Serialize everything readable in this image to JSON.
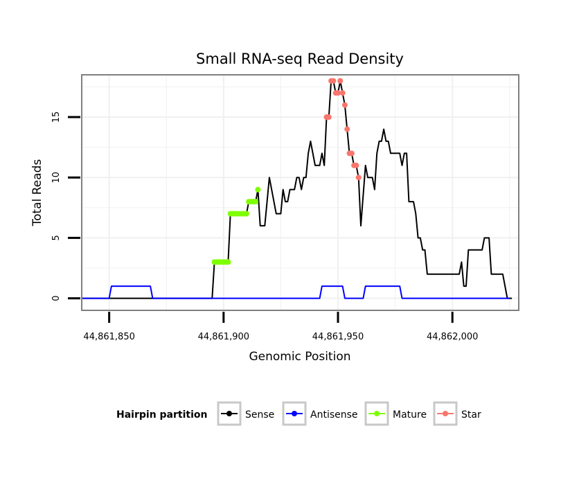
{
  "chart_data": {
    "type": "line",
    "title": "Small RNA-seq Read Density",
    "xlabel": "Genomic Position",
    "ylabel": "Total Reads",
    "xlim": [
      44861838,
      44862029
    ],
    "ylim": [
      -1,
      18.5
    ],
    "x_ticks": [
      44861850,
      44861900,
      44861950,
      44862000
    ],
    "x_tick_labels": [
      "44,861,850",
      "44,861,900",
      "44,861,950",
      "44,862,000"
    ],
    "y_ticks": [
      0,
      5,
      10,
      15
    ],
    "y_tick_labels": [
      "0",
      "5",
      "10",
      "15"
    ],
    "grid": true,
    "legend": {
      "title": "Hairpin partition",
      "placement": "bottom",
      "entries": [
        "Sense",
        "Antisense",
        "Mature",
        "Star"
      ]
    },
    "series": [
      {
        "name": "Sense",
        "color": "#000000",
        "points": [
          [
            44861838,
            0
          ],
          [
            44861895,
            0
          ],
          [
            44861896,
            3
          ],
          [
            44861902,
            3
          ],
          [
            44861903,
            7
          ],
          [
            44861910,
            7
          ],
          [
            44861911,
            8
          ],
          [
            44861914,
            8
          ],
          [
            44861915,
            9
          ],
          [
            44861916,
            6
          ],
          [
            44861918,
            6
          ],
          [
            44861920,
            10
          ],
          [
            44861923,
            7
          ],
          [
            44861925,
            7
          ],
          [
            44861926,
            9
          ],
          [
            44861927,
            8
          ],
          [
            44861928,
            8
          ],
          [
            44861929,
            9
          ],
          [
            44861931,
            9
          ],
          [
            44861932,
            10
          ],
          [
            44861933,
            10
          ],
          [
            44861934,
            9
          ],
          [
            44861935,
            10
          ],
          [
            44861936,
            10
          ],
          [
            44861937,
            12
          ],
          [
            44861938,
            13
          ],
          [
            44861940,
            11
          ],
          [
            44861942,
            11
          ],
          [
            44861943,
            12
          ],
          [
            44861944,
            11
          ],
          [
            44861945,
            15
          ],
          [
            44861946,
            15
          ],
          [
            44861947,
            18
          ],
          [
            44861948,
            18
          ],
          [
            44861949,
            17
          ],
          [
            44861950,
            17
          ],
          [
            44861951,
            18
          ],
          [
            44861952,
            17
          ],
          [
            44861953,
            16
          ],
          [
            44861954,
            14
          ],
          [
            44861955,
            12
          ],
          [
            44861956,
            12
          ],
          [
            44861957,
            11
          ],
          [
            44861958,
            11
          ],
          [
            44861959,
            10
          ],
          [
            44861960,
            6
          ],
          [
            44861962,
            11
          ],
          [
            44861963,
            10
          ],
          [
            44861965,
            10
          ],
          [
            44861966,
            9
          ],
          [
            44861967,
            12
          ],
          [
            44861968,
            13
          ],
          [
            44861969,
            13
          ],
          [
            44861970,
            14
          ],
          [
            44861971,
            13
          ],
          [
            44861972,
            13
          ],
          [
            44861973,
            12
          ],
          [
            44861977,
            12
          ],
          [
            44861978,
            11
          ],
          [
            44861979,
            12
          ],
          [
            44861980,
            12
          ],
          [
            44861981,
            8
          ],
          [
            44861983,
            8
          ],
          [
            44861984,
            7
          ],
          [
            44861985,
            5
          ],
          [
            44861986,
            5
          ],
          [
            44861987,
            4
          ],
          [
            44861988,
            4
          ],
          [
            44861989,
            2
          ],
          [
            44862003,
            2
          ],
          [
            44862004,
            3
          ],
          [
            44862005,
            1
          ],
          [
            44862006,
            1
          ],
          [
            44862007,
            4
          ],
          [
            44862013,
            4
          ],
          [
            44862014,
            5
          ],
          [
            44862016,
            5
          ],
          [
            44862017,
            2
          ],
          [
            44862022,
            2
          ],
          [
            44862024,
            0
          ],
          [
            44862026,
            0
          ]
        ]
      },
      {
        "name": "Antisense",
        "color": "#0000ff",
        "points": [
          [
            44861838,
            0
          ],
          [
            44861850,
            0
          ],
          [
            44861851,
            1
          ],
          [
            44861868,
            1
          ],
          [
            44861869,
            0
          ],
          [
            44861942,
            0
          ],
          [
            44861943,
            1
          ],
          [
            44861952,
            1
          ],
          [
            44861953,
            0
          ],
          [
            44861961,
            0
          ],
          [
            44861962,
            1
          ],
          [
            44861977,
            1
          ],
          [
            44861978,
            0
          ],
          [
            44862025,
            0
          ]
        ]
      },
      {
        "name": "Mature",
        "color": "#7fff00",
        "points": [
          [
            44861896,
            3
          ],
          [
            44861897,
            3
          ],
          [
            44861898,
            3
          ],
          [
            44861899,
            3
          ],
          [
            44861900,
            3
          ],
          [
            44861901,
            3
          ],
          [
            44861902,
            3
          ],
          [
            44861903,
            7
          ],
          [
            44861904,
            7
          ],
          [
            44861905,
            7
          ],
          [
            44861906,
            7
          ],
          [
            44861907,
            7
          ],
          [
            44861908,
            7
          ],
          [
            44861909,
            7
          ],
          [
            44861910,
            7
          ],
          [
            44861911,
            8
          ],
          [
            44861912,
            8
          ],
          [
            44861913,
            8
          ],
          [
            44861914,
            8
          ],
          [
            44861915,
            9
          ]
        ]
      },
      {
        "name": "Star",
        "color": "#f8766d",
        "points": [
          [
            44861945,
            15
          ],
          [
            44861946,
            15
          ],
          [
            44861947,
            18
          ],
          [
            44861948,
            18
          ],
          [
            44861949,
            17
          ],
          [
            44861950,
            17
          ],
          [
            44861951,
            18
          ],
          [
            44861952,
            17
          ],
          [
            44861953,
            16
          ],
          [
            44861954,
            14
          ],
          [
            44861955,
            12
          ],
          [
            44861956,
            12
          ],
          [
            44861957,
            11
          ],
          [
            44861958,
            11
          ],
          [
            44861959,
            10
          ]
        ]
      }
    ]
  }
}
